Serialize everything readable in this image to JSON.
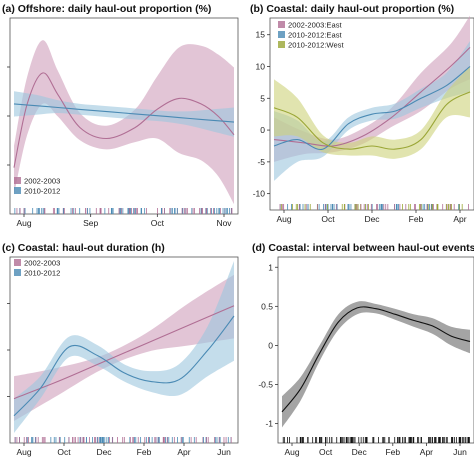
{
  "colors": {
    "pink": "#b06e94",
    "pink_band": "#cf9fbb",
    "blue": "#4a8ab4",
    "blue_band": "#9cc6de",
    "olive": "#9aa636",
    "olive_band": "#cdd27a",
    "gray": "#111111",
    "gray_band": "#9a9a9a"
  },
  "chart_data": [
    {
      "id": "a",
      "type": "line",
      "title": "(a) Offshore: daily haul-out proportion (%)",
      "x_ticks": [
        "Aug",
        "Sep",
        "Oct",
        "Nov"
      ],
      "y_ticks": [],
      "legend": [
        "2002-2003",
        "2010-2012"
      ],
      "legend_position": "bottom-left",
      "series": [
        {
          "name": "2002-2003",
          "color": "pink",
          "x": [
            0,
            0.06,
            0.13,
            0.2,
            0.3,
            0.42,
            0.55,
            0.65,
            0.75,
            0.85,
            0.93,
            1.0
          ],
          "y": [
            0.2,
            0.55,
            0.72,
            0.6,
            0.42,
            0.36,
            0.42,
            0.52,
            0.58,
            0.55,
            0.48,
            0.38
          ],
          "lower": [
            0.05,
            0.38,
            0.55,
            0.48,
            0.35,
            0.3,
            0.34,
            0.36,
            0.28,
            0.24,
            0.15,
            0.0
          ],
          "upper": [
            0.32,
            0.7,
            0.9,
            0.73,
            0.5,
            0.43,
            0.52,
            0.7,
            0.86,
            0.87,
            0.82,
            0.75
          ]
        },
        {
          "name": "2010-2012",
          "color": "blue",
          "x": [
            0,
            0.1,
            0.2,
            0.3,
            0.4,
            0.5,
            0.6,
            0.7,
            0.8,
            0.9,
            1.0
          ],
          "y": [
            0.55,
            0.54,
            0.53,
            0.52,
            0.51,
            0.5,
            0.49,
            0.48,
            0.47,
            0.46,
            0.45
          ],
          "lower": [
            0.48,
            0.49,
            0.5,
            0.49,
            0.48,
            0.47,
            0.46,
            0.45,
            0.43,
            0.4,
            0.37
          ],
          "upper": [
            0.62,
            0.6,
            0.57,
            0.55,
            0.54,
            0.53,
            0.52,
            0.51,
            0.51,
            0.52,
            0.53
          ]
        }
      ]
    },
    {
      "id": "b",
      "type": "line",
      "title": "(b) Coastal: daily haul-out proportion (%)",
      "x_ticks": [
        "Aug",
        "Oct",
        "Dec",
        "Feb",
        "Apr"
      ],
      "y_ticks": [
        "15",
        "10",
        "5",
        "0",
        "-5",
        "-10"
      ],
      "ylim": [
        -11,
        17
      ],
      "legend": [
        "2002-2003:East",
        "2010-2012:East",
        "2010-2012:West"
      ],
      "legend_position": "top-left",
      "series": [
        {
          "name": "2002-2003:East",
          "color": "pink",
          "x": [
            0,
            0.15,
            0.3,
            0.45,
            0.6,
            0.75,
            0.9,
            1.0
          ],
          "y": [
            -1.5,
            -2,
            -2.5,
            -1,
            2,
            6,
            10,
            13
          ],
          "lower": [
            -5,
            -3.8,
            -3.5,
            -2.2,
            0.5,
            3,
            6.5,
            8
          ],
          "upper": [
            2,
            -0.2,
            -1.5,
            0.2,
            3.5,
            9,
            13.5,
            18
          ]
        },
        {
          "name": "2010-2012:East",
          "color": "blue",
          "x": [
            0,
            0.12,
            0.25,
            0.38,
            0.5,
            0.62,
            0.75,
            0.88,
            1.0
          ],
          "y": [
            -2.5,
            -1.5,
            -3,
            1,
            2.5,
            3,
            5,
            7,
            10
          ],
          "lower": [
            -8,
            -5,
            -4.2,
            0,
            1.5,
            1.8,
            3.5,
            5,
            6
          ],
          "upper": [
            3,
            1.5,
            -1.8,
            2,
            3.5,
            4.2,
            6.5,
            9,
            14
          ]
        },
        {
          "name": "2010-2012:West",
          "color": "olive",
          "x": [
            0,
            0.12,
            0.25,
            0.38,
            0.5,
            0.62,
            0.75,
            0.88,
            1.0
          ],
          "y": [
            3.5,
            2,
            -2,
            -3,
            -2.5,
            -3,
            -1.5,
            4,
            6
          ],
          "lower": [
            -1,
            -1,
            -3.5,
            -4,
            -4,
            -4.5,
            -3,
            2,
            2
          ],
          "upper": [
            8,
            5,
            -0.8,
            -2,
            -1,
            -1.5,
            0,
            6,
            10
          ]
        }
      ]
    },
    {
      "id": "c",
      "type": "line",
      "title": "(c) Coastal: haul-out duration (h)",
      "x_ticks": [
        "Aug",
        "Oct",
        "Dec",
        "Feb",
        "Apr",
        "Jun"
      ],
      "y_ticks": [],
      "legend": [
        "2002-2003",
        "2010-2012"
      ],
      "legend_position": "top-left",
      "series": [
        {
          "name": "2002-2003",
          "color": "pink",
          "x": [
            0,
            0.2,
            0.4,
            0.6,
            0.8,
            1.0
          ],
          "y": [
            0.2,
            0.3,
            0.41,
            0.52,
            0.63,
            0.74
          ],
          "lower": [
            0.07,
            0.22,
            0.37,
            0.47,
            0.51,
            0.55
          ],
          "upper": [
            0.33,
            0.38,
            0.45,
            0.58,
            0.76,
            0.92
          ]
        },
        {
          "name": "2010-2012",
          "color": "blue",
          "x": [
            0,
            0.12,
            0.25,
            0.38,
            0.5,
            0.62,
            0.75,
            0.88,
            1.0
          ],
          "y": [
            0.1,
            0.26,
            0.5,
            0.45,
            0.35,
            0.3,
            0.31,
            0.48,
            0.68
          ],
          "lower": [
            0.0,
            0.2,
            0.44,
            0.39,
            0.3,
            0.24,
            0.22,
            0.33,
            0.42
          ],
          "upper": [
            0.2,
            0.33,
            0.56,
            0.51,
            0.4,
            0.36,
            0.4,
            0.62,
            1.0
          ]
        }
      ]
    },
    {
      "id": "d",
      "type": "line",
      "title": "(d) Coastal: interval between haul-out events",
      "x_ticks": [
        "Aug",
        "Oct",
        "Dec",
        "Feb",
        "Apr",
        "Jun"
      ],
      "y_ticks": [
        "1",
        "0.5",
        "0",
        "-0.5",
        "-1"
      ],
      "ylim": [
        -1.12,
        1.08
      ],
      "series": [
        {
          "color": "gray",
          "x": [
            0,
            0.1,
            0.2,
            0.3,
            0.4,
            0.5,
            0.6,
            0.7,
            0.8,
            0.9,
            1.0
          ],
          "y": [
            -0.85,
            -0.55,
            -0.1,
            0.3,
            0.48,
            0.47,
            0.4,
            0.32,
            0.25,
            0.12,
            0.05
          ],
          "lower": [
            -1.05,
            -0.7,
            -0.2,
            0.2,
            0.4,
            0.41,
            0.33,
            0.24,
            0.15,
            0.0,
            -0.1
          ],
          "upper": [
            -0.65,
            -0.4,
            0.0,
            0.4,
            0.56,
            0.53,
            0.47,
            0.4,
            0.35,
            0.24,
            0.2
          ]
        }
      ]
    }
  ]
}
